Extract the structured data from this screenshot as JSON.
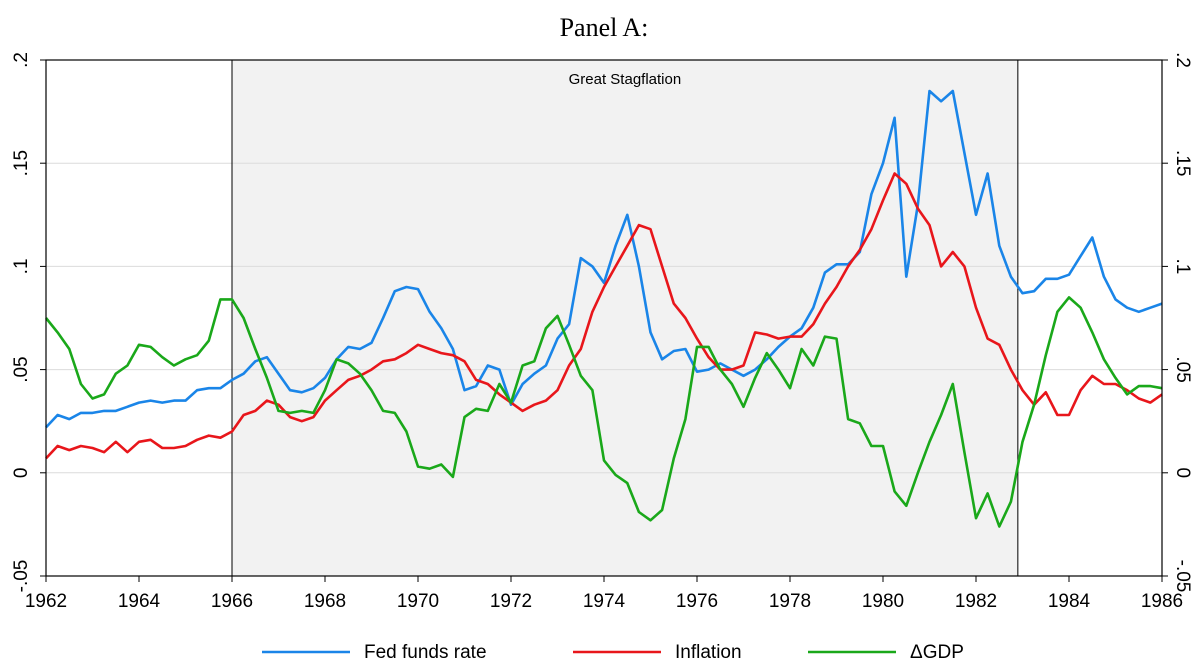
{
  "chart_data": {
    "type": "line",
    "title": "Panel A:",
    "annotation": {
      "label": "Great Stagflation",
      "start": 1966,
      "end": 1982.9
    },
    "x": [
      1962,
      1962.25,
      1962.5,
      1962.75,
      1963,
      1963.25,
      1963.5,
      1963.75,
      1964,
      1964.25,
      1964.5,
      1964.75,
      1965,
      1965.25,
      1965.5,
      1965.75,
      1966,
      1966.25,
      1966.5,
      1966.75,
      1967,
      1967.25,
      1967.5,
      1967.75,
      1968,
      1968.25,
      1968.5,
      1968.75,
      1969,
      1969.25,
      1969.5,
      1969.75,
      1970,
      1970.25,
      1970.5,
      1970.75,
      1971,
      1971.25,
      1971.5,
      1971.75,
      1972,
      1972.25,
      1972.5,
      1972.75,
      1973,
      1973.25,
      1973.5,
      1973.75,
      1974,
      1974.25,
      1974.5,
      1974.75,
      1975,
      1975.25,
      1975.5,
      1975.75,
      1976,
      1976.25,
      1976.5,
      1976.75,
      1977,
      1977.25,
      1977.5,
      1977.75,
      1978,
      1978.25,
      1978.5,
      1978.75,
      1979,
      1979.25,
      1979.5,
      1979.75,
      1980,
      1980.25,
      1980.5,
      1980.75,
      1981,
      1981.25,
      1981.5,
      1981.75,
      1982,
      1982.25,
      1982.5,
      1982.75,
      1983,
      1983.25,
      1983.5,
      1983.75,
      1984,
      1984.25,
      1984.5,
      1984.75,
      1985,
      1985.25,
      1985.5,
      1985.75,
      1986
    ],
    "series": [
      {
        "name": "Fed funds rate",
        "color": "#1a85e8",
        "values": [
          0.022,
          0.028,
          0.026,
          0.029,
          0.029,
          0.03,
          0.03,
          0.032,
          0.034,
          0.035,
          0.034,
          0.035,
          0.035,
          0.04,
          0.041,
          0.041,
          0.045,
          0.048,
          0.054,
          0.056,
          0.048,
          0.04,
          0.039,
          0.041,
          0.046,
          0.055,
          0.061,
          0.06,
          0.063,
          0.075,
          0.088,
          0.09,
          0.089,
          0.078,
          0.07,
          0.06,
          0.04,
          0.042,
          0.052,
          0.05,
          0.033,
          0.043,
          0.048,
          0.052,
          0.065,
          0.072,
          0.104,
          0.1,
          0.092,
          0.11,
          0.125,
          0.1,
          0.068,
          0.055,
          0.059,
          0.06,
          0.049,
          0.05,
          0.053,
          0.05,
          0.047,
          0.05,
          0.055,
          0.061,
          0.066,
          0.07,
          0.08,
          0.097,
          0.101,
          0.101,
          0.107,
          0.135,
          0.15,
          0.172,
          0.095,
          0.13,
          0.185,
          0.18,
          0.185,
          0.155,
          0.125,
          0.145,
          0.11,
          0.095,
          0.087,
          0.088,
          0.094,
          0.094,
          0.096,
          0.105,
          0.114,
          0.095,
          0.084,
          0.08,
          0.078,
          0.08,
          0.082
        ]
      },
      {
        "name": "Inflation",
        "color": "#e8161b",
        "values": [
          0.007,
          0.013,
          0.011,
          0.013,
          0.012,
          0.01,
          0.015,
          0.01,
          0.015,
          0.016,
          0.012,
          0.012,
          0.013,
          0.016,
          0.018,
          0.017,
          0.02,
          0.028,
          0.03,
          0.035,
          0.033,
          0.027,
          0.025,
          0.027,
          0.035,
          0.04,
          0.045,
          0.047,
          0.05,
          0.054,
          0.055,
          0.058,
          0.062,
          0.06,
          0.058,
          0.057,
          0.054,
          0.045,
          0.043,
          0.038,
          0.034,
          0.03,
          0.033,
          0.035,
          0.04,
          0.052,
          0.06,
          0.078,
          0.09,
          0.1,
          0.11,
          0.12,
          0.118,
          0.1,
          0.082,
          0.075,
          0.065,
          0.056,
          0.05,
          0.05,
          0.052,
          0.068,
          0.067,
          0.065,
          0.066,
          0.066,
          0.072,
          0.082,
          0.09,
          0.1,
          0.108,
          0.118,
          0.132,
          0.145,
          0.14,
          0.128,
          0.12,
          0.1,
          0.107,
          0.1,
          0.08,
          0.065,
          0.062,
          0.05,
          0.04,
          0.033,
          0.039,
          0.028,
          0.028,
          0.04,
          0.047,
          0.043,
          0.043,
          0.04,
          0.036,
          0.034,
          0.038
        ]
      },
      {
        "name": "ΔGDP",
        "color": "#1aa81a",
        "values": [
          0.075,
          0.068,
          0.06,
          0.043,
          0.036,
          0.038,
          0.048,
          0.052,
          0.062,
          0.061,
          0.056,
          0.052,
          0.055,
          0.057,
          0.064,
          0.084,
          0.084,
          0.075,
          0.06,
          0.046,
          0.03,
          0.029,
          0.03,
          0.029,
          0.04,
          0.055,
          0.053,
          0.048,
          0.04,
          0.03,
          0.029,
          0.02,
          0.003,
          0.002,
          0.004,
          -0.002,
          0.027,
          0.031,
          0.03,
          0.043,
          0.034,
          0.052,
          0.054,
          0.07,
          0.076,
          0.062,
          0.047,
          0.04,
          0.006,
          -0.001,
          -0.005,
          -0.019,
          -0.023,
          -0.018,
          0.007,
          0.026,
          0.061,
          0.061,
          0.05,
          0.043,
          0.032,
          0.046,
          0.058,
          0.05,
          0.041,
          0.06,
          0.052,
          0.066,
          0.065,
          0.026,
          0.024,
          0.013,
          0.013,
          -0.009,
          -0.016,
          0.0,
          0.015,
          0.028,
          0.043,
          0.01,
          -0.022,
          -0.01,
          -0.026,
          -0.014,
          0.015,
          0.033,
          0.057,
          0.078,
          0.085,
          0.08,
          0.068,
          0.055,
          0.046,
          0.038,
          0.042,
          0.042,
          0.041
        ]
      }
    ],
    "xlim": [
      1962,
      1986
    ],
    "xticks": [
      1962,
      1964,
      1966,
      1968,
      1970,
      1972,
      1974,
      1976,
      1978,
      1980,
      1982,
      1984,
      1986
    ],
    "ylim": [
      -0.05,
      0.2
    ],
    "yticks": [
      {
        "value": -0.05,
        "label": "-.05"
      },
      {
        "value": 0,
        "label": "0"
      },
      {
        "value": 0.05,
        "label": ".05"
      },
      {
        "value": 0.1,
        "label": ".1"
      },
      {
        "value": 0.15,
        "label": ".15"
      },
      {
        "value": 0.2,
        "label": ".2"
      }
    ],
    "grid": true,
    "legend": "bottom"
  }
}
